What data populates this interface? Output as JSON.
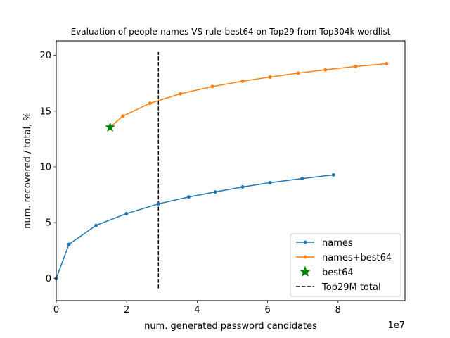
{
  "chart_data": {
    "type": "line",
    "title": "Evaluation of people-names VS rule-best64 on Top29 from Top304k wordlist",
    "xlabel": "num. generated password candidates",
    "ylabel": "num. recovered / total, %",
    "x_offset_label": "1e7",
    "xlim": [
      0,
      9.9
    ],
    "ylim": [
      -2,
      21.3
    ],
    "xticks": [
      0,
      2,
      4,
      6,
      8
    ],
    "xtick_labels": [
      "0",
      "2",
      "4",
      "6",
      "8"
    ],
    "yticks": [
      0,
      5,
      10,
      15,
      20
    ],
    "ytick_labels": [
      "0",
      "5",
      "10",
      "15",
      "20"
    ],
    "grid": false,
    "legend_position": "lower-right",
    "series": [
      {
        "name": "names",
        "color": "#1f77b4",
        "marker": "dot",
        "x": [
          0,
          0.36,
          1.13,
          1.99,
          2.9,
          3.76,
          4.51,
          5.29,
          6.07,
          6.98,
          7.87
        ],
        "y": [
          0,
          3.05,
          4.75,
          5.8,
          6.68,
          7.3,
          7.75,
          8.2,
          8.58,
          8.95,
          9.28
        ]
      },
      {
        "name": "names+best64",
        "color": "#ff7f0e",
        "marker": "dot",
        "x": [
          1.53,
          1.89,
          2.66,
          3.52,
          4.43,
          5.29,
          6.07,
          6.87,
          7.64,
          8.5,
          9.38
        ],
        "y": [
          13.55,
          14.55,
          15.7,
          16.55,
          17.2,
          17.68,
          18.05,
          18.4,
          18.7,
          19.0,
          19.25
        ]
      },
      {
        "name": "best64",
        "color": "#008000",
        "marker": "star",
        "x": [
          1.53
        ],
        "y": [
          13.55
        ]
      },
      {
        "name": "Top29M total",
        "color": "#000000",
        "style": "dashed",
        "x": [
          2.9,
          2.9
        ],
        "y": [
          -0.9,
          20.3
        ]
      }
    ]
  }
}
